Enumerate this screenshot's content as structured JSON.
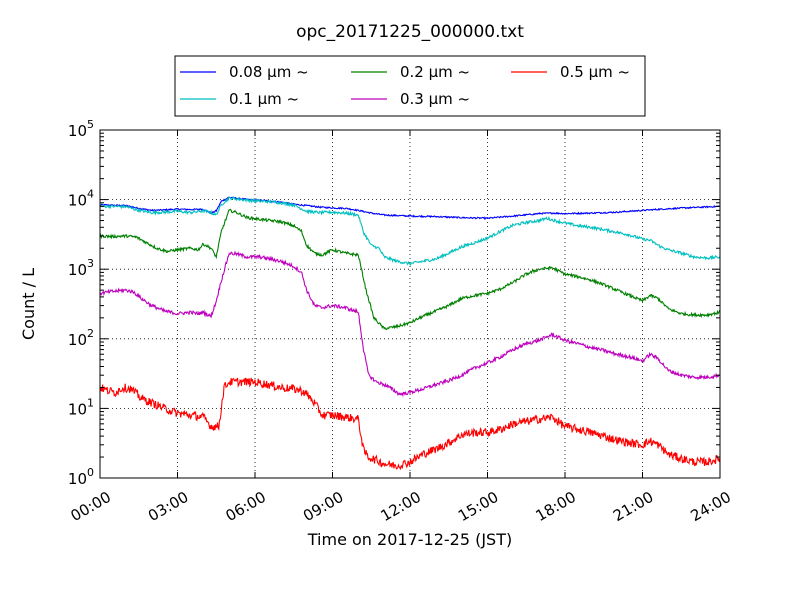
{
  "chart_data": {
    "type": "line",
    "title": "opc_20171225_000000.txt",
    "xlabel": "Time on 2017-12-25 (JST)",
    "ylabel": "Count / L",
    "y_scale": "log",
    "ylim": [
      1,
      100000
    ],
    "xlim_hours": [
      0,
      24
    ],
    "grid": true,
    "legend_location": "top-center",
    "x_tick_labels": [
      "00:00",
      "03:00",
      "06:00",
      "09:00",
      "12:00",
      "15:00",
      "18:00",
      "21:00",
      "24:00"
    ],
    "y_tick_labels": [
      {
        "base": "10",
        "exp": "0"
      },
      {
        "base": "10",
        "exp": "1"
      },
      {
        "base": "10",
        "exp": "2"
      },
      {
        "base": "10",
        "exp": "3"
      },
      {
        "base": "10",
        "exp": "4"
      },
      {
        "base": "10",
        "exp": "5"
      }
    ],
    "series": [
      {
        "name": "0.08 μm ~",
        "color": "#0000ff",
        "x": [
          0,
          0.5,
          1.0,
          1.5,
          2.0,
          2.5,
          3.0,
          3.5,
          4.0,
          4.3,
          4.5,
          4.7,
          5.0,
          5.5,
          6.0,
          6.5,
          7.0,
          7.5,
          8.0,
          8.5,
          9.0,
          9.5,
          10.0,
          10.5,
          11.0,
          12.0,
          13.0,
          14.0,
          15.0,
          16.0,
          17.0,
          17.5,
          18.0,
          19.0,
          20.0,
          21.0,
          22.0,
          23.0,
          24.0
        ],
        "values": [
          8400,
          8300,
          8200,
          7500,
          7000,
          7100,
          7300,
          7200,
          7300,
          6400,
          6900,
          9500,
          10800,
          10200,
          9800,
          9600,
          9200,
          8600,
          8200,
          7800,
          7600,
          7500,
          7000,
          6400,
          6000,
          5800,
          5700,
          5500,
          5400,
          5800,
          6300,
          6400,
          6300,
          6400,
          6600,
          7000,
          7400,
          7700,
          8000
        ]
      },
      {
        "name": "0.1 μm ~",
        "color": "#00bfbf",
        "x": [
          0,
          0.5,
          1.0,
          1.5,
          2.0,
          2.5,
          3.0,
          3.5,
          4.0,
          4.3,
          4.5,
          4.7,
          5.0,
          5.5,
          6.0,
          6.5,
          7.0,
          7.5,
          8.0,
          8.5,
          9.0,
          9.5,
          10.0,
          10.2,
          10.5,
          10.8,
          11.0,
          11.5,
          12.0,
          12.5,
          13.0,
          13.5,
          14.0,
          14.5,
          15.0,
          15.5,
          16.0,
          16.5,
          17.0,
          17.3,
          17.6,
          18.0,
          18.5,
          19.0,
          19.5,
          20.0,
          20.5,
          21.0,
          21.3,
          21.7,
          22.0,
          22.5,
          23.0,
          23.5,
          24.0
        ],
        "values": [
          8000,
          8000,
          7900,
          7000,
          6500,
          6600,
          6800,
          6500,
          6900,
          6500,
          6000,
          8500,
          10500,
          10000,
          9600,
          9400,
          9000,
          8400,
          6800,
          6500,
          6600,
          6400,
          6000,
          3400,
          2200,
          2000,
          1500,
          1300,
          1200,
          1300,
          1400,
          1700,
          2100,
          2400,
          2800,
          3500,
          4300,
          4700,
          5000,
          5400,
          5000,
          4600,
          4200,
          4000,
          3700,
          3400,
          3100,
          2700,
          2600,
          2100,
          1900,
          1700,
          1500,
          1450,
          1500
        ]
      },
      {
        "name": "0.2 μm ~",
        "color": "#008000",
        "x": [
          0,
          0.5,
          1.0,
          1.4,
          1.8,
          2.2,
          2.6,
          3.0,
          3.5,
          3.8,
          4.0,
          4.3,
          4.5,
          4.7,
          5.0,
          5.3,
          5.7,
          6.2,
          6.6,
          7.0,
          7.5,
          7.8,
          8.0,
          8.3,
          8.6,
          9.0,
          9.5,
          10.0,
          10.3,
          10.6,
          11.0,
          11.5,
          12.0,
          12.5,
          13.0,
          13.5,
          14.0,
          14.5,
          15.0,
          15.5,
          16.0,
          16.5,
          17.0,
          17.5,
          18.0,
          18.5,
          19.0,
          19.5,
          20.0,
          20.5,
          21.0,
          21.3,
          21.6,
          22.0,
          22.5,
          23.0,
          23.5,
          24.0
        ],
        "values": [
          3000,
          2950,
          3000,
          2900,
          2400,
          2000,
          1800,
          1900,
          2000,
          1900,
          2300,
          2000,
          1500,
          3500,
          7000,
          6500,
          5500,
          5200,
          5000,
          4800,
          4200,
          3500,
          2200,
          1700,
          1600,
          1900,
          1700,
          1600,
          500,
          200,
          140,
          150,
          170,
          210,
          250,
          300,
          380,
          420,
          450,
          520,
          650,
          850,
          1000,
          1050,
          850,
          780,
          700,
          600,
          500,
          420,
          350,
          420,
          380,
          270,
          230,
          220,
          220,
          240
        ]
      },
      {
        "name": "0.3 μm ~",
        "color": "#bf00bf",
        "x": [
          0,
          0.5,
          1.0,
          1.3,
          1.6,
          2.0,
          2.5,
          3.0,
          3.5,
          3.8,
          4.0,
          4.3,
          4.5,
          4.7,
          5.0,
          5.3,
          5.7,
          6.2,
          6.6,
          7.0,
          7.5,
          7.8,
          8.0,
          8.3,
          8.6,
          9.0,
          9.5,
          10.0,
          10.2,
          10.4,
          10.7,
          11.0,
          11.3,
          11.6,
          12.0,
          12.5,
          13.0,
          13.5,
          14.0,
          14.5,
          15.0,
          15.5,
          16.0,
          16.5,
          17.0,
          17.5,
          18.0,
          18.5,
          19.0,
          19.5,
          20.0,
          20.5,
          21.0,
          21.3,
          21.6,
          22.0,
          22.5,
          23.0,
          23.5,
          24.0
        ],
        "values": [
          450,
          480,
          500,
          470,
          380,
          300,
          250,
          230,
          240,
          230,
          240,
          210,
          350,
          700,
          1700,
          1650,
          1500,
          1500,
          1400,
          1300,
          1100,
          900,
          500,
          300,
          280,
          300,
          280,
          240,
          70,
          30,
          24,
          22,
          19,
          16,
          17,
          19,
          22,
          25,
          30,
          38,
          45,
          55,
          70,
          85,
          95,
          115,
          95,
          85,
          75,
          68,
          60,
          55,
          48,
          60,
          52,
          35,
          30,
          28,
          28,
          30
        ]
      },
      {
        "name": "0.5 μm ~",
        "color": "#ff0000",
        "x": [
          0,
          0.3,
          0.6,
          0.9,
          1.2,
          1.6,
          2.0,
          2.5,
          3.0,
          3.5,
          4.0,
          4.3,
          4.6,
          4.8,
          5.0,
          5.5,
          6.0,
          6.5,
          7.0,
          7.5,
          7.8,
          8.0,
          8.3,
          8.6,
          9.0,
          9.5,
          10.0,
          10.2,
          10.4,
          10.7,
          11.0,
          11.5,
          12.0,
          12.5,
          13.0,
          13.5,
          14.0,
          14.5,
          15.0,
          15.5,
          16.0,
          16.5,
          17.0,
          17.5,
          18.0,
          18.5,
          19.0,
          19.5,
          20.0,
          20.5,
          21.0,
          21.3,
          21.6,
          22.0,
          22.5,
          23.0,
          23.5,
          24.0
        ],
        "values": [
          20,
          18,
          17,
          20,
          19,
          14,
          12,
          10,
          8.5,
          8,
          7.5,
          5.5,
          5.5,
          20,
          24,
          24,
          24,
          22,
          20,
          19,
          18,
          16,
          12,
          8,
          8,
          7.5,
          7,
          2.5,
          2,
          1.8,
          1.6,
          1.5,
          1.7,
          2.2,
          2.6,
          3.2,
          4.2,
          4.5,
          4.5,
          5.0,
          6.0,
          6.5,
          7.0,
          7.5,
          5.5,
          5.0,
          4.5,
          4.0,
          3.5,
          3.2,
          3.0,
          3.4,
          3.0,
          2.2,
          1.9,
          1.7,
          1.7,
          1.9
        ]
      }
    ]
  }
}
